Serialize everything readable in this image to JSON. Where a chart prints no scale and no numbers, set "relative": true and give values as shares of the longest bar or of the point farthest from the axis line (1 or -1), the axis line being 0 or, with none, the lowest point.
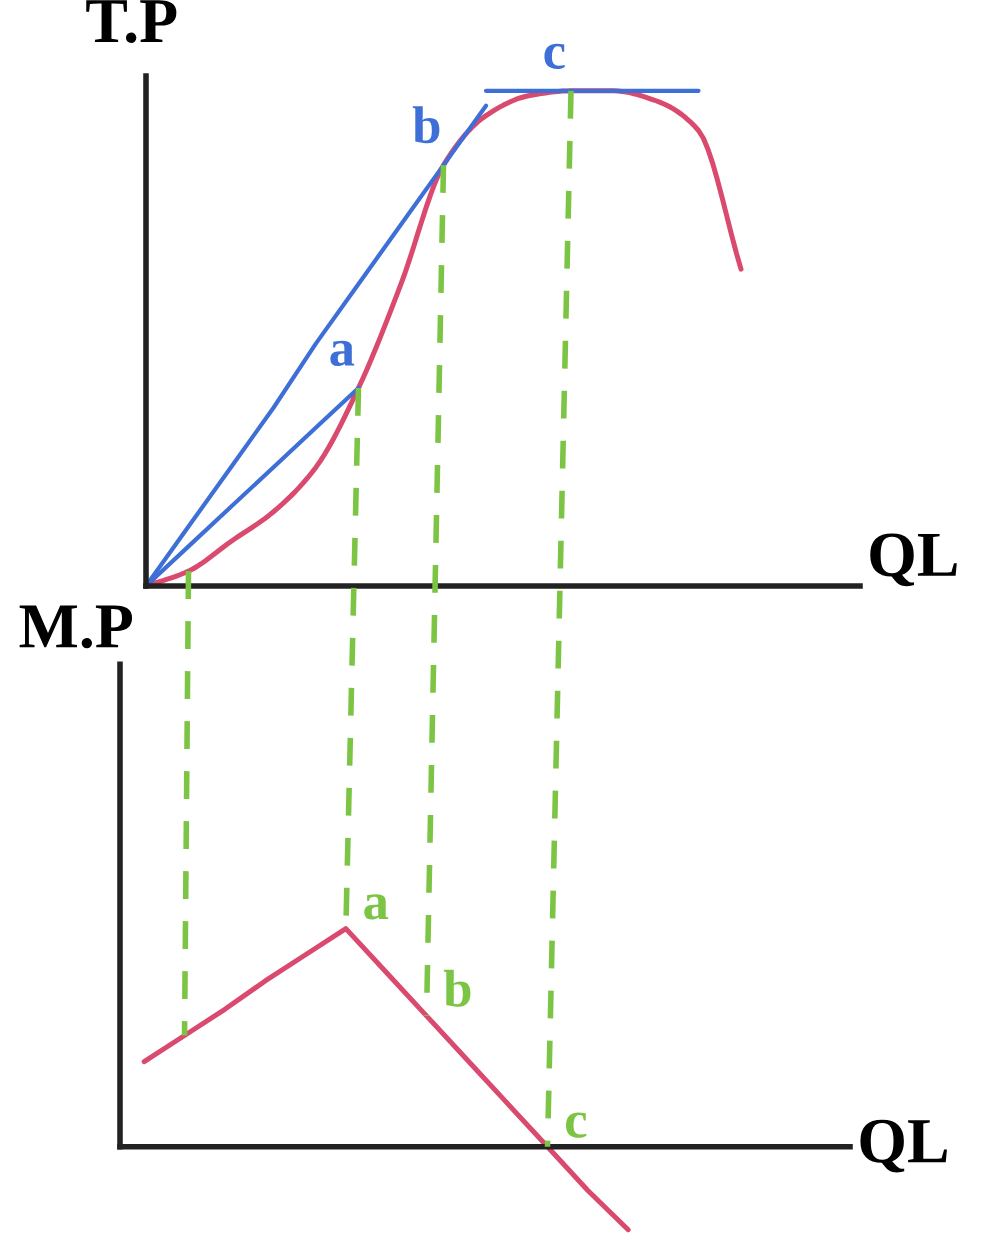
{
  "chart_data": [
    {
      "type": "line",
      "ylabel": "T.P",
      "xlabel": "QL",
      "relative": true,
      "categories": [
        null,
        null,
        null,
        null,
        null,
        null,
        null,
        null,
        null,
        null,
        null,
        null,
        null,
        null,
        null
      ],
      "series": [
        {
          "color": "#d94a6e",
          "values": [
            0,
            0.03,
            0.09,
            0.15,
            0.24,
            0.4,
            0.61,
            0.85,
            0.95,
            0.99,
            1.0,
            1.0,
            0.98,
            0.92,
            0.64
          ]
        },
        {
          "name": "a",
          "color": "#3d6fd6",
          "values": [
            0,
            0.08,
            0.16,
            0.24,
            0.32,
            0.4,
            null,
            null,
            null,
            null,
            null,
            null,
            null,
            null,
            null
          ]
        },
        {
          "name": "b",
          "color": "#3d6fd6",
          "values": [
            0,
            0.12,
            0.24,
            0.36,
            0.49,
            0.61,
            0.73,
            0.85,
            0.97,
            null,
            null,
            null,
            null,
            null,
            null
          ]
        },
        {
          "name": "c",
          "color": "#3d6fd6",
          "values": [
            null,
            null,
            null,
            null,
            null,
            null,
            null,
            null,
            1.0,
            1.0,
            1.0,
            1.0,
            1.0,
            1.0,
            null
          ]
        }
      ]
    },
    {
      "type": "line",
      "ylabel": "M.P",
      "xlabel": "QL",
      "relative": true,
      "categories": [
        null,
        null,
        null,
        null,
        null,
        null,
        null,
        null,
        null,
        null,
        null,
        null,
        null,
        null,
        null
      ],
      "series": [
        {
          "color": "#d94a6e",
          "values": [
            0.39,
            0.51,
            0.63,
            0.76,
            0.88,
            1.0,
            0.8,
            0.6,
            0.4,
            0.2,
            0,
            -0.2,
            -0.38,
            null,
            null
          ]
        }
      ],
      "annotations": [
        "a",
        "b",
        "c"
      ]
    }
  ]
}
